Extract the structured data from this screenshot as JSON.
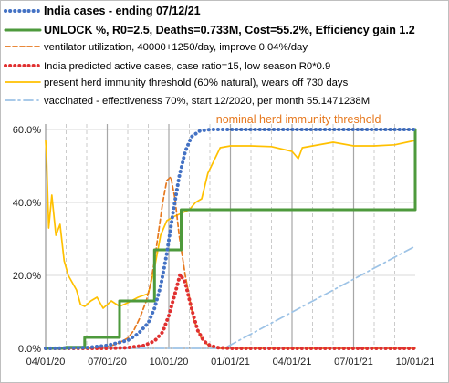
{
  "chart_data": {
    "type": "line",
    "legend": [
      {
        "label": "India cases - ending 07/12/21",
        "color": "#4472c4",
        "style": "dotted",
        "bold": true
      },
      {
        "label": "UNLOCK %, R0=2.5,  Deaths=0.733M, Cost=55.2%, Efficiency gain 1.2",
        "color": "#4e9a3c",
        "style": "solid",
        "bold": true
      },
      {
        "label": "ventilator utilization,  40000+1250/day, improve 0.04%/day",
        "color": "#e6781e",
        "style": "dashed",
        "bold": false
      },
      {
        "label": "India predicted active cases, case ratio=15,  low season  R0*0.9",
        "color": "#e03030",
        "style": "dotted",
        "bold": false
      },
      {
        "label": "present herd immunity  threshold (60% natural),  wears off 730 days",
        "color": "#ffc000",
        "style": "solid",
        "bold": false
      },
      {
        "label": "vaccinated - effectiveness 70%, start 12/2020, per month 55.1471238M",
        "color": "#9dc3e6",
        "style": "dashdot",
        "bold": false
      }
    ],
    "x_ticks": [
      "04/01/20",
      "07/01/20",
      "10/01/20",
      "01/01/21",
      "04/01/21",
      "07/01/21",
      "10/01/21"
    ],
    "x_tick_months": [
      0,
      3,
      6,
      9,
      12,
      15,
      18
    ],
    "y_ticks": [
      "0.0%",
      "20.0%",
      "40.0%",
      "60.0%"
    ],
    "y_tick_values": [
      0,
      20,
      40,
      60
    ],
    "xlim_months": [
      0,
      18
    ],
    "ylim": [
      0,
      61.5
    ],
    "annotation": {
      "text": "nominal herd immunity threshold",
      "x": 8.3,
      "y": 61.2
    },
    "series": [
      {
        "name": "India cases - ending 07/12/21",
        "x": [
          0,
          2,
          3,
          4,
          4.5,
          5,
          5.3,
          5.6,
          5.9,
          6.2,
          6.5,
          6.8,
          7.1,
          7.5,
          8,
          9,
          12,
          15,
          18
        ],
        "y": [
          0,
          0.2,
          0.8,
          2.2,
          4,
          7,
          11,
          17,
          26,
          37,
          47,
          54,
          58,
          59.6,
          60,
          60,
          60,
          60,
          60
        ]
      },
      {
        "name": "UNLOCK %, R0=2.5,  Deaths=0.733M, Cost=55.2%, Efficiency gain 1.2",
        "step": true,
        "x": [
          0,
          1,
          1.9,
          3.6,
          5.3,
          6.6,
          18
        ],
        "y": [
          0,
          0.3,
          3,
          13,
          27,
          38,
          60
        ]
      },
      {
        "name": "ventilator utilization,  40000+1250/day, improve 0.04%/day",
        "x": [
          0,
          2,
          3,
          3.5,
          4,
          4.3,
          4.6,
          4.9,
          5.1,
          5.3,
          5.5,
          5.7,
          5.9,
          6.1,
          6.3,
          6.5,
          6.8,
          7.2,
          7.6,
          8.0,
          8.5,
          18
        ],
        "y": [
          0,
          0,
          0.4,
          1.3,
          2.8,
          5,
          8.5,
          13,
          17.5,
          24,
          32,
          40,
          46,
          47,
          41,
          31,
          20,
          8,
          2.5,
          0.5,
          0,
          0
        ]
      },
      {
        "name": "India predicted active cases, case ratio=15,  low season  R0*0.9",
        "x": [
          0,
          3,
          4,
          4.8,
          5.3,
          5.7,
          6.0,
          6.3,
          6.55,
          6.8,
          7.1,
          7.4,
          7.7,
          8.0,
          8.4,
          9,
          18
        ],
        "y": [
          0,
          0,
          0.2,
          0.8,
          2,
          4.5,
          9,
          15,
          20.3,
          18,
          11,
          5,
          2,
          0.8,
          0.2,
          0,
          0
        ]
      },
      {
        "name": "present herd immunity  threshold (60% natural),  wears off 730 days",
        "x": [
          0,
          0.05,
          0.15,
          0.3,
          0.5,
          0.7,
          0.9,
          1.1,
          1.3,
          1.5,
          1.7,
          1.9,
          2.2,
          2.5,
          2.8,
          3.2,
          3.6,
          4,
          4.5,
          5,
          5.3,
          5.6,
          5.9,
          6.2,
          6.6,
          7.0,
          7.3,
          7.6,
          7.9,
          8.5,
          9,
          10,
          11,
          12,
          12.3,
          12.5,
          13,
          14,
          15,
          16,
          17,
          18
        ],
        "y": [
          57,
          52,
          33,
          42,
          31,
          34,
          24,
          20,
          18,
          16,
          12,
          11.5,
          13,
          14,
          11,
          13,
          11.5,
          12.5,
          14,
          15,
          22,
          31,
          35,
          36,
          37,
          38,
          40,
          41,
          48,
          55,
          55.5,
          55.5,
          55.3,
          54,
          52,
          55,
          55.5,
          56.5,
          55.5,
          55.5,
          55.8,
          57
        ]
      },
      {
        "name": "vaccinated - effectiveness 70%, start 12/2020, per month 55.1471238M",
        "x": [
          0,
          8.3,
          8.7,
          18
        ],
        "y": [
          0,
          0,
          0,
          28
        ]
      }
    ],
    "nominal_threshold": 60
  }
}
